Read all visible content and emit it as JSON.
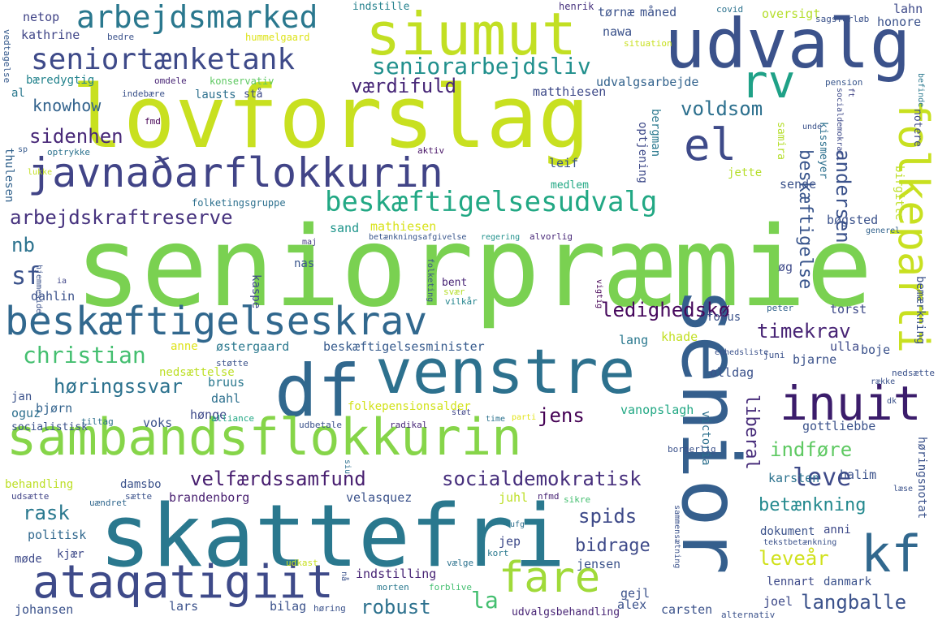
{
  "words": {
    "seniorpraemie": "seniorpræmie",
    "lovforslag": "lovforslag",
    "skattefri": "skattefri",
    "senior": "senior",
    "udvalg": "udvalg",
    "siumut": "siumut",
    "df": "df",
    "venstre": "venstre",
    "sambandsflokkurin": "sambandsflokkurin",
    "javnadarflokkurin": "javnaðarflokkurin",
    "beskaeftigelseskrav": "beskæftigelseskrav",
    "ataqatigiit": "ataqatigiit",
    "inuit": "inuit",
    "folkeparti": "folkeparti",
    "kf": "kf",
    "rv": "rv",
    "el": "el",
    "fare": "fare",
    "arbejdsmarked": "arbejdsmarked",
    "seniortaenketank": "seniortænketank",
    "seniorarbejdsliv": "seniorarbejdsliv",
    "beskaeftigelsesudvalg": "beskæftigelsesudvalg",
    "arbejdskraftreserve": "arbejdskraftreserve",
    "christian": "christian",
    "velfaerdssamfund": "velfærdssamfund",
    "socialdemokratisk": "socialdemokratisk",
    "ledighedsko": "ledighedskø",
    "timekrav": "timekrav",
    "horingssvar": "høringssvar",
    "vaerdifuld": "værdifuld",
    "knowhow": "knowhow",
    "sidenhen": "sidenhen",
    "voldsom": "voldsom",
    "andersen": "andersen",
    "beskaeftigelse": "beskæftigelse",
    "langballe": "langballe",
    "robust": "robust",
    "leveaar": "levеår",
    "betaenkning": "betænkning",
    "bidrage": "bidrage",
    "spids": "spids",
    "indfoere": "indføre",
    "leve": "leve",
    "jens": "jens",
    "rask": "rask",
    "la": "la",
    "nb": "nb",
    "sf": "sf",
    "liberal": "liberal",
    "netop": "netop",
    "kathrine": "kathrine",
    "baeredygtig": "bæredygtig",
    "al": "al",
    "indstille": "indstille",
    "henrik": "henrik",
    "hummelgaard": "hummelgaard",
    "bedre": "bedre",
    "covid": "covid",
    "sagsforloeb": "sagsforløb",
    "lahn": "lahn",
    "honore": "honore",
    "maaned": "måned",
    "toernae": "tørnæ",
    "oversigt": "oversigt",
    "nawa": "nawa",
    "situation": "situation",
    "udvalgsarbejde": "udvalgsarbejde",
    "pension": "pension",
    "befinde": "befinde",
    "ft": "ft",
    "matthiesen": "matthiesen",
    "lausts": "lausts",
    "staa": "stå",
    "omdele": "omdele",
    "konservativ": "konservativ",
    "indebaere": "indebære",
    "vedtagelse": "vedtagelse",
    "fmd": "fmd",
    "optrykke": "optrykke",
    "aktiv": "aktiv",
    "thulesen": "thulesen",
    "sp": "sp",
    "lukke": "lukke",
    "folketingsgruppe": "folketingsgruppe",
    "regering": "regering",
    "betaenkningsafgivelse": "betænkningsafgivelse",
    "medlem": "medlem",
    "sende": "sende",
    "sand": "sand",
    "mathiesen": "mathiesen",
    "alvorlig": "alvorlig",
    "boegsted": "bøgsted",
    "generel": "generel",
    "birgitte": "birgitte",
    "socialdemokrati": "socialdemokrati",
    "notere": "notere",
    "kissmeyer": "kissmeyer",
    "samira": "samira",
    "unde": "unde",
    "bergman": "bergman",
    "optjening": "optjening",
    "jette": "jette",
    "leif": "leif",
    "nas": "nas",
    "maj": "maj",
    "hjemmeside": "hjemmeside",
    "ia": "ia",
    "dahlin": "dahlin",
    "kaspe": "kaspe",
    "bent": "bent",
    "svaer": "svær",
    "vilkaar": "vilkår",
    "folketing": "folketing",
    "vigtig": "vigtig",
    "og": "øg",
    "peter": "peter",
    "torst": "torst",
    "bemaerkning": "bemærkning",
    "fokus": "fokus",
    "khade": "khade",
    "lang": "lang",
    "ulla": "ulla",
    "boje": "boje",
    "bjarne": "bjarne",
    "juni": "juni",
    "enhedsliste": "enhedsliste",
    "anne": "anne",
    "oestergaard": "østergaard",
    "beskaeftigelsesminister": "beskæftigelsesminister",
    "stoette": "støtte",
    "nedsaettelse": "nedsættelse",
    "bruus": "bruus",
    "dahl": "dahl",
    "jan": "jan",
    "bjoern": "bjørn",
    "oguz": "oguz",
    "socialistisk": "socialistisk",
    "tiltag": "tiltag",
    "voks": "voks",
    "hoenge": "hønge",
    "alliance": "alliance",
    "udbetale": "udbetale",
    "radikal": "radikal",
    "stoet": "støt",
    "time": "time",
    "parti": "parti",
    "folkepensionsalder": "folkepensionsalder",
    "olldag": "olldag",
    "raekke": "række",
    "nedsaette": "nedsætte",
    "dk": "dk",
    "vanopslagh": "vanopslagh",
    "gottliebbe": "gottliebbe",
    "victoria": "victoria",
    "siu": "siu",
    "borgerlig": "borgerlig",
    "hoeringsnotat": "høringsnotat",
    "karsten": "karsten",
    "halim": "halim",
    "laese": "læse",
    "behandling": "behandling",
    "damsbo": "damsbo",
    "udsaette": "udsætte",
    "saette": "sætte",
    "uaendret": "uændret",
    "brandenborg": "brandenborg",
    "velasquez": "velasquez",
    "juhl": "juhl",
    "nfmd": "nfmd",
    "sikre": "sikre",
    "ufg": "ufg",
    "politisk": "politisk",
    "jep": "jep",
    "dokument": "dokument",
    "anni": "anni",
    "tekstbetaenkning": "tekstbetænkning",
    "moede": "møde",
    "kjaer": "kjær",
    "udkast": "udkast",
    "kort": "kort",
    "vaelge": "vælge",
    "indstilling": "indstilling",
    "jensen": "jensen",
    "sammensaetning": "sammensætning",
    "johansen": "johansen",
    "lars": "lars",
    "bilag": "bilag",
    "morten": "morten",
    "forblive": "forblive",
    "hoering": "høring",
    "udvalgsbehandling": "udvalgsbehandling",
    "gejl": "gejl",
    "alex": "alex",
    "carsten": "carsten",
    "joel": "joel",
    "lennart": "lennart",
    "danmark": "danmark",
    "alternativ": "alternativ",
    "naa": "nå"
  }
}
